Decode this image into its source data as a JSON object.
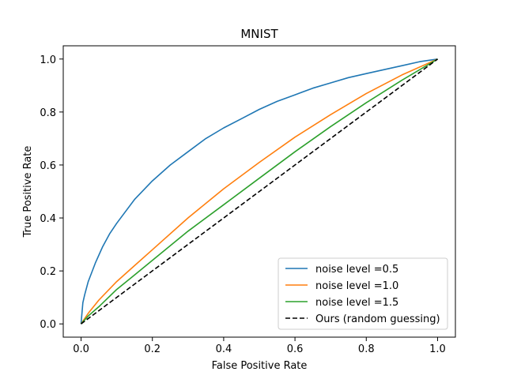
{
  "chart_data": {
    "type": "line",
    "title": "MNIST",
    "xlabel": "False Positive Rate",
    "ylabel": "True Positive Rate",
    "xlim": [
      -0.05,
      1.05
    ],
    "ylim": [
      -0.05,
      1.05
    ],
    "xticks": [
      0.0,
      0.2,
      0.4,
      0.6,
      0.8,
      1.0
    ],
    "yticks": [
      0.0,
      0.2,
      0.4,
      0.6,
      0.8,
      1.0
    ],
    "xtick_labels": [
      "0.0",
      "0.2",
      "0.4",
      "0.6",
      "0.8",
      "1.0"
    ],
    "ytick_labels": [
      "0.0",
      "0.2",
      "0.4",
      "0.6",
      "0.8",
      "1.0"
    ],
    "grid": false,
    "legend_position": "bottom-right",
    "series": [
      {
        "name": "noise level =0.5",
        "color": "#1f77b4",
        "style": "solid",
        "x": [
          0.0,
          0.005,
          0.01,
          0.02,
          0.04,
          0.06,
          0.08,
          0.1,
          0.15,
          0.2,
          0.25,
          0.3,
          0.35,
          0.4,
          0.45,
          0.5,
          0.55,
          0.6,
          0.65,
          0.7,
          0.75,
          0.8,
          0.85,
          0.9,
          0.95,
          1.0
        ],
        "y": [
          0.0,
          0.08,
          0.11,
          0.16,
          0.23,
          0.29,
          0.34,
          0.38,
          0.47,
          0.54,
          0.6,
          0.65,
          0.7,
          0.74,
          0.775,
          0.81,
          0.84,
          0.865,
          0.89,
          0.91,
          0.93,
          0.945,
          0.96,
          0.975,
          0.99,
          1.0
        ]
      },
      {
        "name": "noise level =1.0",
        "color": "#ff7f0e",
        "style": "solid",
        "x": [
          0.0,
          0.02,
          0.05,
          0.1,
          0.15,
          0.2,
          0.3,
          0.4,
          0.5,
          0.6,
          0.7,
          0.8,
          0.9,
          1.0
        ],
        "y": [
          0.0,
          0.04,
          0.09,
          0.16,
          0.22,
          0.28,
          0.4,
          0.51,
          0.61,
          0.705,
          0.79,
          0.87,
          0.94,
          1.0
        ]
      },
      {
        "name": "noise level =1.5",
        "color": "#2ca02c",
        "style": "solid",
        "x": [
          0.0,
          0.02,
          0.05,
          0.1,
          0.15,
          0.2,
          0.3,
          0.4,
          0.5,
          0.6,
          0.7,
          0.8,
          0.9,
          1.0
        ],
        "y": [
          0.0,
          0.03,
          0.065,
          0.13,
          0.185,
          0.24,
          0.35,
          0.45,
          0.55,
          0.65,
          0.745,
          0.835,
          0.92,
          1.0
        ]
      },
      {
        "name": "Ours (random guessing)",
        "color": "#000000",
        "style": "dashed",
        "x": [
          0.0,
          1.0
        ],
        "y": [
          0.0,
          1.0
        ]
      }
    ]
  }
}
